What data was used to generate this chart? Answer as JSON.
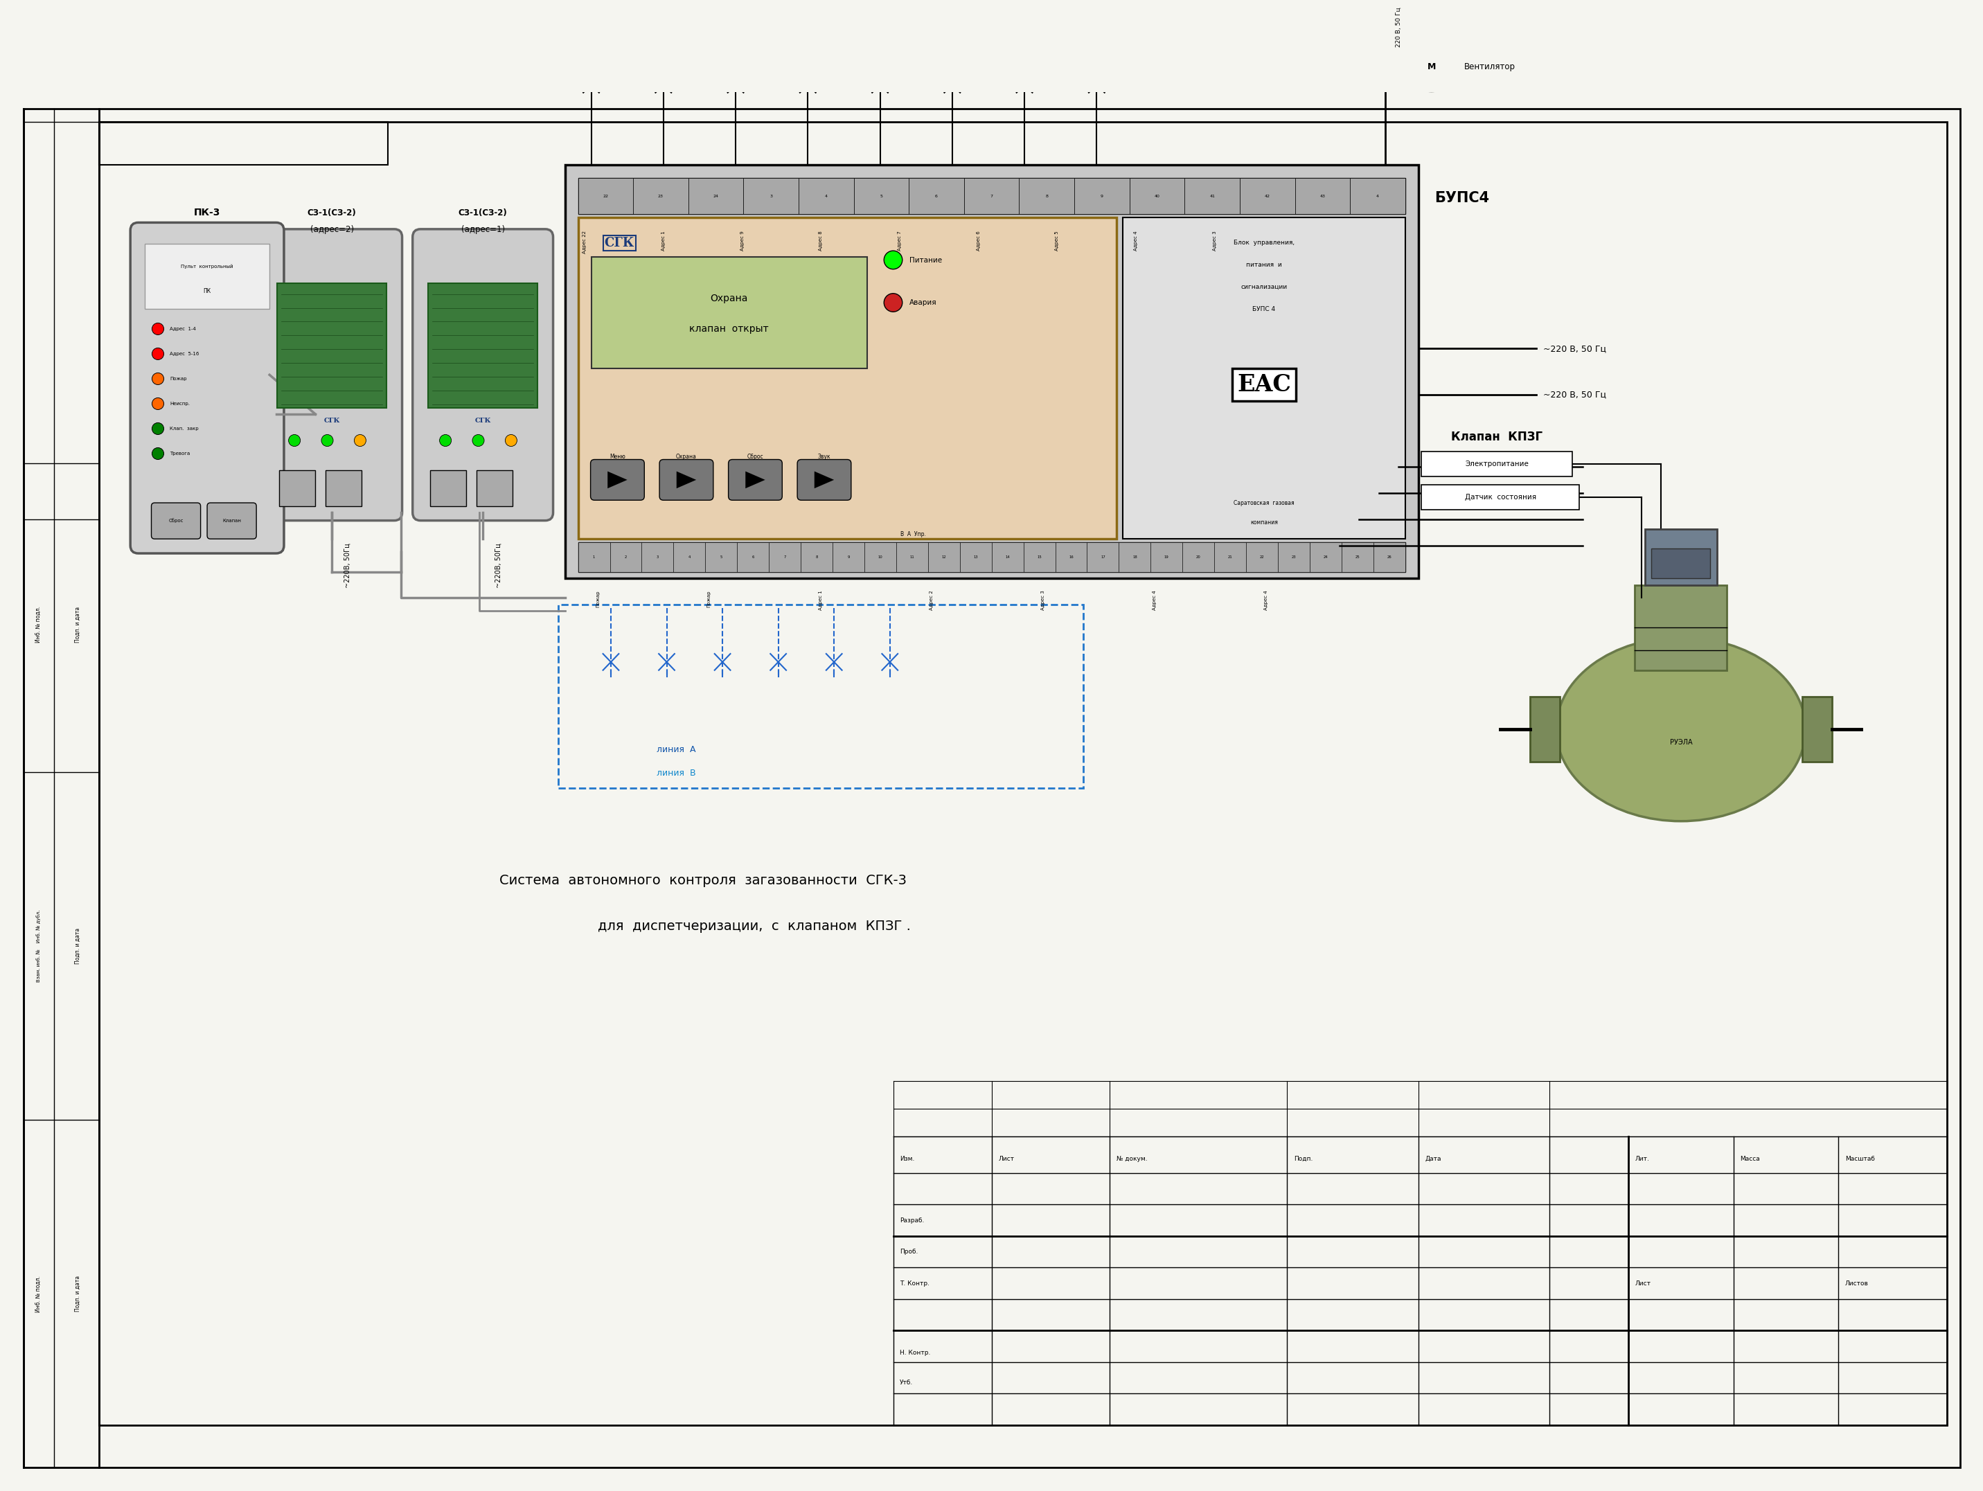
{
  "bg_color": "#f5f5f0",
  "title_line1": "Система  автономного  контроля  загазованности  СГК-3",
  "title_line2": "для  диспетчеризации,  с  клапаном  КПЗГ .",
  "bups_label": "БУПС4",
  "klapan_label": "Клапан  КПЗГ",
  "liniya_a": "линия  А",
  "liniya_b": "линия  В",
  "v220_1": "~220 В, 50 Гц",
  "v220_2": "~220 В, 50 Гц",
  "elektropitanie": "Электропитание",
  "datchik_sos": "Датчик  состояния",
  "ventilator": "Вентилятор",
  "v220_top": "220 В, 50 Гц",
  "pk3_label": "ПК-3",
  "sz1_left_l1": "СЗ-1(СЗ-2)",
  "sz1_left_l2": "(адрес=2)",
  "sz1_right_l1": "СЗ-1(СЗ-2)",
  "sz1_right_l2": "(адрес=1)",
  "wire_label_left": "~220В, 50Гц",
  "wire_label_right": "~220В, 50Гц",
  "sgk_logo": "CГК",
  "ohrana": "Охрана",
  "klapan_otkryt": "клапан  открыт",
  "pitanie": "Питание",
  "avariya": "Авария",
  "blok_upr": "Блок  управления,",
  "pitaniya_i": "питания  и",
  "signalizacii": "сигнализации",
  "bups4_txt": "БУПС 4",
  "saratov": "Саратовская  газовая",
  "kompaniya": "компания",
  "btn_labels": [
    "Меню",
    "Охрана",
    "Сброс",
    "Звук"
  ],
  "stamp_izm": "Изм.",
  "stamp_list": "Лист",
  "stamp_doc": "№ докум.",
  "stamp_podp": "Подп.",
  "stamp_data": "Дата",
  "stamp_lit": "Лит.",
  "stamp_massa": "Масса",
  "stamp_masshtab": "Масштаб",
  "stamp_razrab": "Разраб.",
  "stamp_prob": "Проб.",
  "stamp_t_kontr": "Т. Контр.",
  "stamp_n_kontr": "Н. Контр.",
  "stamp_utb": "Утб.",
  "stamp_list2": "Лист",
  "stamp_listov": "Листов",
  "pk3_pult": "Пульт  контрольный",
  "pk3_pk": "ПК",
  "adres_14": "Адрес  1-4",
  "adres_516": "Адрес  5-16",
  "pozhar": "Пожар",
  "neispr": "Неиспр.",
  "klap_zak": "Клап.  закр",
  "trevoga": "Тревога",
  "sbros": "Сброс",
  "klap_btn": "Клапан"
}
